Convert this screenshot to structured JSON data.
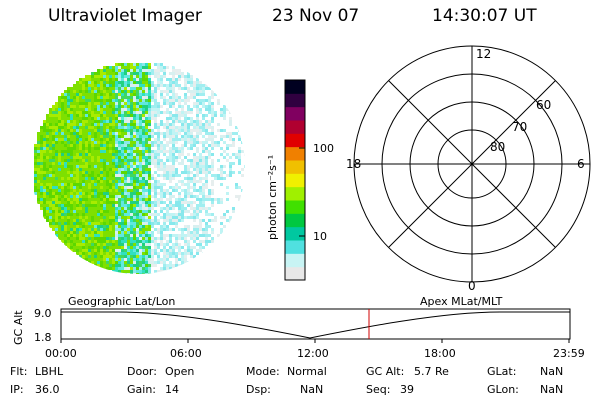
{
  "header": {
    "title": "Ultraviolet Imager",
    "date": "23 Nov 07",
    "time": "14:30:07 UT"
  },
  "colorbar": {
    "axis_label": "photon cm⁻²s⁻¹",
    "ticks": [
      "100",
      "10"
    ],
    "colors": [
      "#e8e8e8",
      "#c8f4f4",
      "#50e0e0",
      "#00c8a0",
      "#00c840",
      "#40e000",
      "#a0f000",
      "#f0f000",
      "#f0c000",
      "#f08000",
      "#e00000",
      "#b00030",
      "#800060",
      "#300040",
      "#000020"
    ]
  },
  "polar_plot": {
    "hour_labels": {
      "top": "12",
      "left": "18",
      "right": "6",
      "bottom": "0"
    },
    "lat_labels": [
      "60",
      "70",
      "80"
    ]
  },
  "footprint": {
    "left_label": "Geographic Lat/Lon",
    "right_label": "Apex MLat/MLT",
    "y_axis_label": "GC Alt",
    "y_ticks": [
      "9.0",
      "1.8"
    ],
    "x_ticks": [
      "00:00",
      "06:00",
      "12:00",
      "18:00",
      "23:59"
    ]
  },
  "info": {
    "flt_label": "Flt:",
    "flt_value": "LBHL",
    "ip_label": "IP:",
    "ip_value": "36.0",
    "door_label": "Door:",
    "door_value": "Open",
    "gain_label": "Gain:",
    "gain_value": "14",
    "mode_label": "Mode:",
    "mode_value": "Normal",
    "dsp_label": "Dsp:",
    "dsp_value": "NaN",
    "gcalt_label": "GC Alt:",
    "gcalt_value": "5.7 Re",
    "seq_label": "Seq:",
    "seq_value": "39",
    "glat_label": "GLat:",
    "glat_value": "NaN",
    "glon_label": "GLon:",
    "glon_value": "NaN"
  },
  "colors": {
    "marker": "#d00000",
    "disk_bright": "#7ee000",
    "disk_mid": "#20d080",
    "disk_faint": "#a0eef0"
  }
}
